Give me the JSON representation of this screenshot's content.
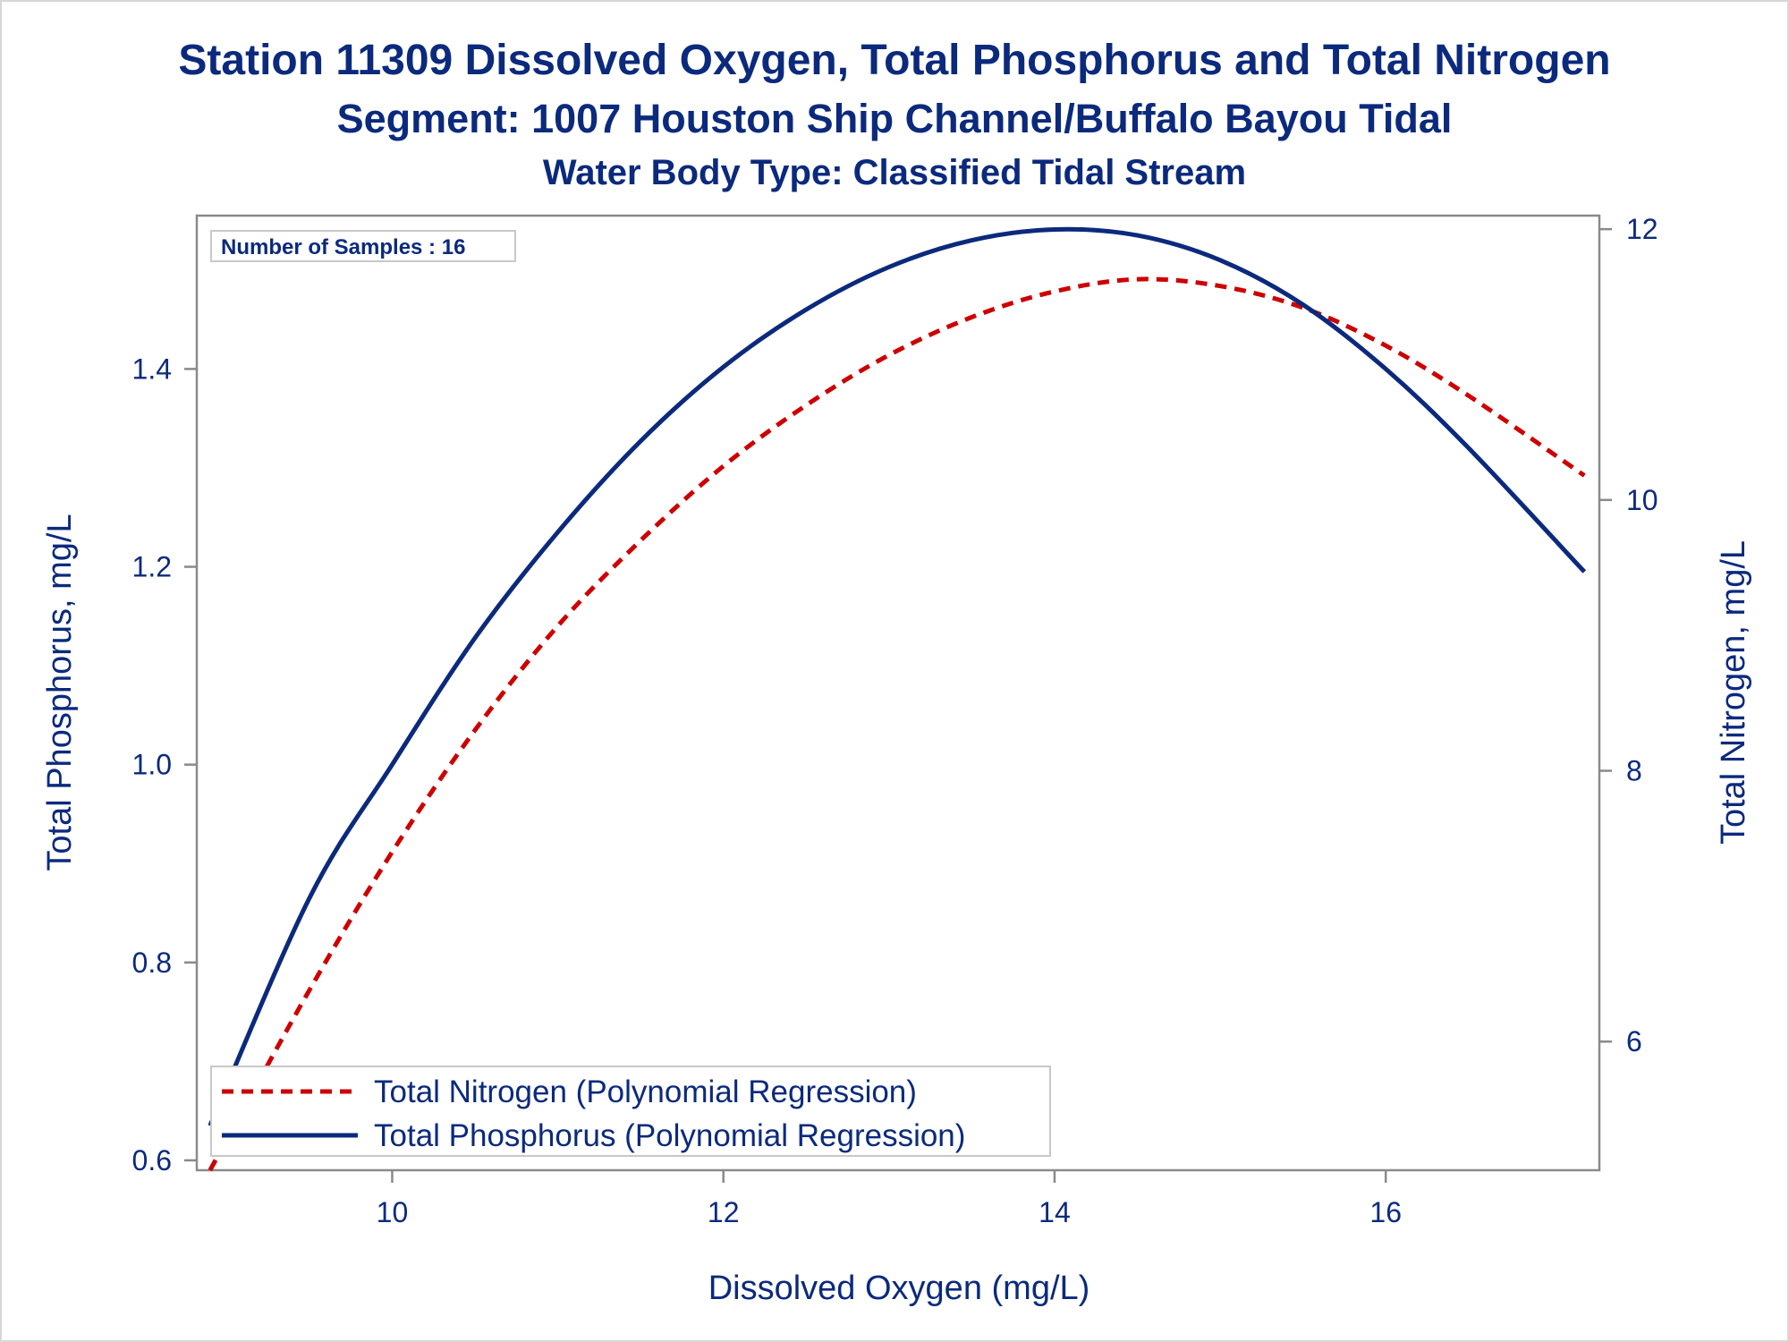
{
  "chart_data": {
    "type": "line",
    "title": "Station 11309  Dissolved Oxygen, Total Phosphorus and Total Nitrogen",
    "subtitle": "Segment: 1007  Houston Ship Channel/Buffalo Bayou Tidal",
    "subtitle2": "Water Body Type: Classified Tidal Stream",
    "xlabel": "Dissolved Oxygen (mg/L)",
    "ylabel": "Total Phosphorus, mg/L",
    "y2label": "Total Nitrogen, mg/L",
    "xlim": [
      8.82,
      17.29
    ],
    "ylim": [
      0.59,
      1.555
    ],
    "y2lim": [
      5.05,
      12.1
    ],
    "x_ticks": [
      10,
      12,
      14,
      16
    ],
    "y_ticks": [
      0.6,
      0.8,
      1.0,
      1.2,
      1.4
    ],
    "y2_ticks": [
      6,
      8,
      10,
      12
    ],
    "grid": false,
    "annotation": "Number of Samples : 16",
    "legend_position": "bottom-left",
    "series": [
      {
        "name": "Total Nitrogen (Polynomial Regression)",
        "axis": "right",
        "style": "dashed",
        "color": "#cc0000",
        "x": [
          8.9,
          9.5,
          10.0,
          10.5,
          11.0,
          11.5,
          12.0,
          12.5,
          13.0,
          13.5,
          14.0,
          14.5,
          15.0,
          15.5,
          16.0,
          16.5,
          17.2
        ],
        "y": [
          5.05,
          6.38,
          7.4,
          8.3,
          9.07,
          9.7,
          10.25,
          10.7,
          11.07,
          11.35,
          11.54,
          11.63,
          11.58,
          11.42,
          11.14,
          10.77,
          10.18
        ]
      },
      {
        "name": "Total Phosphorus (Polynomial Regression)",
        "axis": "left",
        "style": "solid",
        "color": "#0b2a7d",
        "x": [
          8.9,
          9.5,
          10.0,
          10.5,
          11.0,
          11.5,
          12.0,
          12.5,
          13.0,
          13.5,
          14.0,
          14.5,
          15.0,
          15.5,
          16.0,
          16.5,
          17.2
        ],
        "y": [
          0.635,
          0.865,
          1.0,
          1.128,
          1.235,
          1.327,
          1.402,
          1.46,
          1.503,
          1.53,
          1.541,
          1.535,
          1.51,
          1.465,
          1.4,
          1.32,
          1.195
        ]
      }
    ]
  }
}
